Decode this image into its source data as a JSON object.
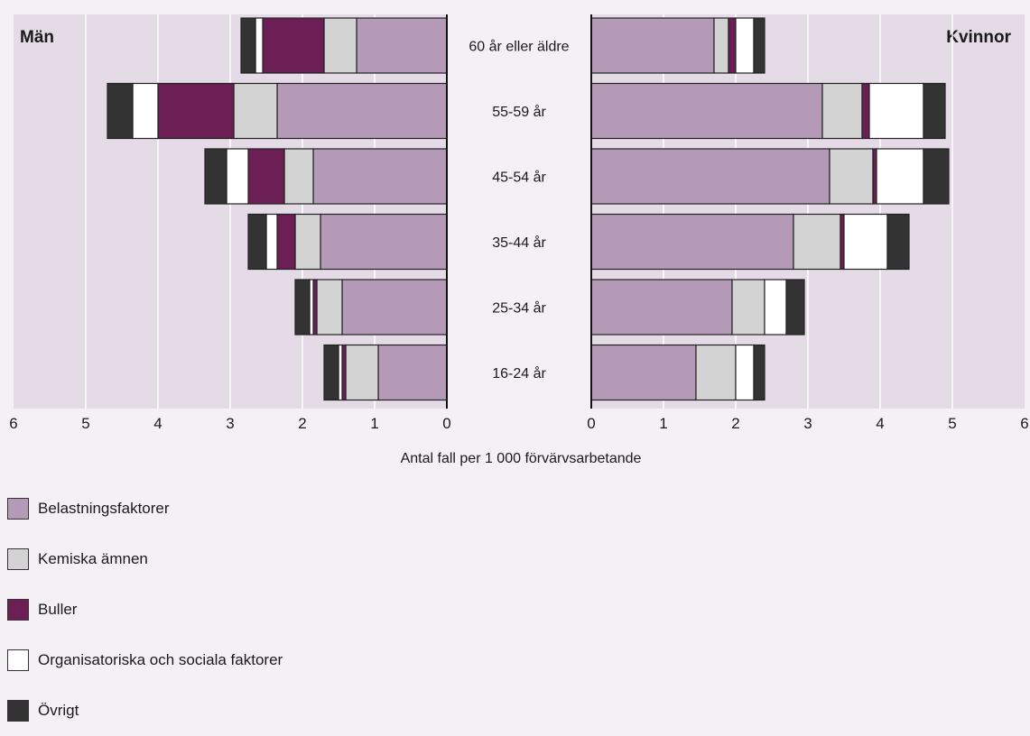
{
  "chart_data": {
    "type": "bar",
    "orientation": "horizontal-population-pyramid",
    "stacked": true,
    "xlabel": "Antal fall per 1 000 förvärvsarbetande",
    "xlim": [
      0,
      6
    ],
    "x_ticks": [
      "0",
      "1",
      "2",
      "3",
      "4",
      "5",
      "6"
    ],
    "grid": true,
    "panels": [
      {
        "side": "left",
        "label": "Män"
      },
      {
        "side": "right",
        "label": "Kvinnor"
      }
    ],
    "categories": [
      "60 år eller äldre",
      "55-59 år",
      "45-54 år",
      "35-44 år",
      "25-34 år",
      "16-24 år"
    ],
    "series": [
      {
        "name": "Belastningsfaktorer",
        "color": "#b59ab8",
        "men": [
          1.25,
          2.35,
          1.85,
          1.75,
          1.45,
          0.95
        ],
        "women": [
          1.7,
          3.2,
          3.3,
          2.8,
          1.95,
          1.45
        ]
      },
      {
        "name": "Kemiska ämnen",
        "color": "#d3d3d3",
        "men": [
          0.45,
          0.6,
          0.4,
          0.35,
          0.35,
          0.45
        ],
        "women": [
          0.2,
          0.55,
          0.6,
          0.65,
          0.45,
          0.55
        ]
      },
      {
        "name": "Buller",
        "color": "#6b1f55",
        "men": [
          0.85,
          1.05,
          0.5,
          0.25,
          0.05,
          0.05
        ],
        "women": [
          0.1,
          0.1,
          0.05,
          0.05,
          0.0,
          0.0
        ]
      },
      {
        "name": "Organisatoriska och sociala faktorer",
        "color": "#ffffff",
        "men": [
          0.1,
          0.35,
          0.3,
          0.15,
          0.05,
          0.05
        ],
        "women": [
          0.25,
          0.75,
          0.65,
          0.6,
          0.3,
          0.25
        ]
      },
      {
        "name": "Övrigt",
        "color": "#333333",
        "men": [
          0.2,
          0.35,
          0.3,
          0.25,
          0.2,
          0.2
        ],
        "women": [
          0.15,
          0.3,
          0.35,
          0.3,
          0.25,
          0.15
        ]
      }
    ]
  }
}
